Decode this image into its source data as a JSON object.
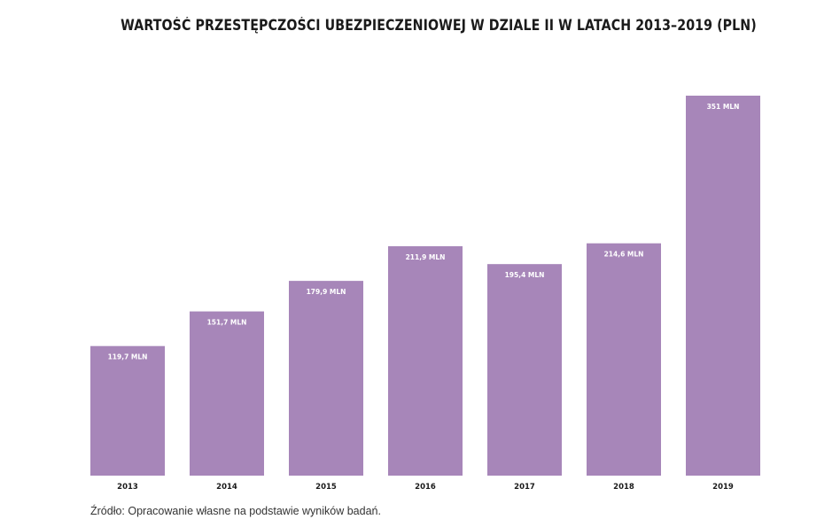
{
  "chart_data": {
    "type": "bar",
    "title": "WARTOŚĆ PRZESTĘPCZOŚCI UBEZPIECZENIOWEJ W DZIALE II W LATACH 2013–2019 (PLN)",
    "categories": [
      "2013",
      "2014",
      "2015",
      "2016",
      "2017",
      "2018",
      "2019"
    ],
    "values": [
      119.7,
      151.7,
      179.9,
      211.9,
      195.4,
      214.6,
      351
    ],
    "value_labels": [
      "119,7 MLN",
      "151,7 MLN",
      "179,9 MLN",
      "211,9 MLN",
      "195,4 MLN",
      "214,6 MLN",
      "351 MLN"
    ],
    "xlabel": "",
    "ylabel": "",
    "ylim": [
      0,
      351
    ],
    "grid": false,
    "legend": "none",
    "colors": {
      "bar": "#a786b9",
      "text": "#1a1a1a",
      "bar_label": "#ffffff"
    }
  },
  "source_note": "Źródło: Opracowanie własne na podstawie wyników badań."
}
